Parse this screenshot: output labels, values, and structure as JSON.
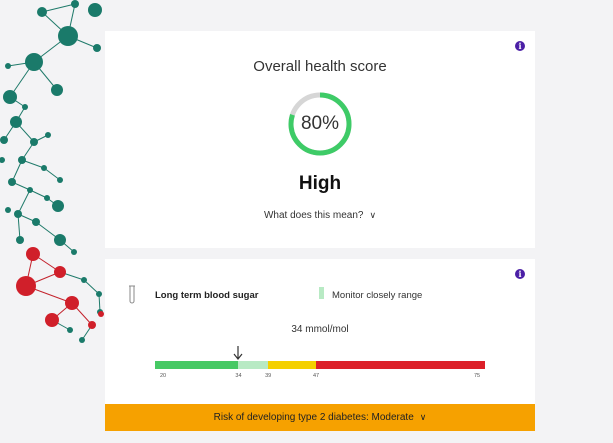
{
  "health_card": {
    "title": "Overall health score",
    "score_percent": 80,
    "score_label": "80%",
    "level": "High",
    "meaning_link": "What does this mean?",
    "info_icon": "info-icon",
    "colors": {
      "ring": "#3ecb67",
      "ring_track": "#d6d6d6"
    }
  },
  "blood_sugar_card": {
    "label": "Long term blood sugar",
    "legend_label": "Monitor closely range",
    "value_text": "34 mmol/mol",
    "value": 34,
    "scale": {
      "ticks": [
        "20",
        "34",
        "39",
        "47",
        "75"
      ],
      "segments": [
        {
          "from": 20,
          "to": 34,
          "color": "#46c964"
        },
        {
          "from": 34,
          "to": 39,
          "color": "#b8eac4"
        },
        {
          "from": 39,
          "to": 47,
          "color": "#f4d000"
        },
        {
          "from": 47,
          "to": 75,
          "color": "#dc2029"
        }
      ]
    },
    "icons": [
      "test-tube-icon",
      "info-icon",
      "arrow-down-icon"
    ]
  },
  "risk_banner": {
    "text": "Risk of developing type 2 diabetes: Moderate",
    "color": "#f6a100"
  }
}
